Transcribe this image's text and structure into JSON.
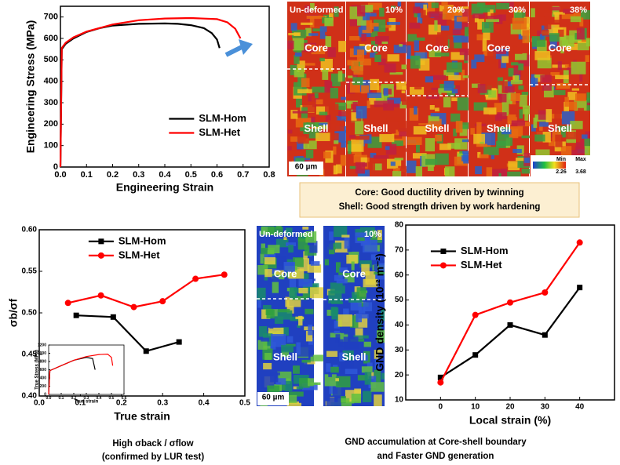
{
  "chart_data": [
    {
      "type": "line",
      "xlabel": "Engineering Strain",
      "ylabel": "Engineering Stress (MPa)",
      "xlim": [
        0,
        0.8
      ],
      "ylim": [
        0,
        750
      ],
      "xticks": [
        {
          "value": 0,
          "label": "0.0"
        },
        0.1,
        0.2,
        0.3,
        0.4,
        0.5,
        0.6,
        0.7,
        0.8
      ],
      "yticks": [
        0,
        100,
        200,
        300,
        400,
        500,
        600,
        700
      ],
      "legend": "lower right",
      "series": [
        {
          "name": "SLM-Hom",
          "color": "#000000",
          "x": [
            0,
            0.005,
            0.02,
            0.05,
            0.1,
            0.15,
            0.2,
            0.3,
            0.4,
            0.45,
            0.5,
            0.55,
            0.58,
            0.6,
            0.61
          ],
          "values": [
            0,
            550,
            575,
            600,
            630,
            648,
            660,
            668,
            670,
            668,
            662,
            648,
            625,
            595,
            555
          ]
        },
        {
          "name": "SLM-Het",
          "color": "#ff0000",
          "x": [
            0,
            0.005,
            0.02,
            0.05,
            0.1,
            0.2,
            0.3,
            0.4,
            0.5,
            0.6,
            0.64,
            0.67,
            0.69
          ],
          "values": [
            0,
            555,
            580,
            605,
            632,
            665,
            685,
            693,
            695,
            690,
            675,
            645,
            600
          ]
        }
      ]
    },
    {
      "type": "line",
      "xlabel": "True strain",
      "ylabel": "σb/σf",
      "xlim": [
        0,
        0.5
      ],
      "ylim": [
        0.4,
        0.6
      ],
      "xticks": [
        {
          "value": 0,
          "label": "0.0"
        },
        0.1,
        0.2,
        0.3,
        0.4,
        0.5
      ],
      "yticks": [
        {
          "value": 0.4,
          "label": "0.40"
        },
        0.45,
        {
          "value": 0.5,
          "label": "0.50"
        },
        0.55,
        {
          "value": 0.6,
          "label": "0.60"
        }
      ],
      "legend": "upper center",
      "series": [
        {
          "name": "SLM-Hom",
          "color": "#000000",
          "marker": "square",
          "x": [
            0.09,
            0.18,
            0.26,
            0.34
          ],
          "values": [
            0.497,
            0.495,
            0.454,
            0.465
          ]
        },
        {
          "name": "SLM-Het",
          "color": "#ff0000",
          "marker": "circle",
          "x": [
            0.07,
            0.15,
            0.23,
            0.3,
            0.38,
            0.45
          ],
          "values": [
            0.512,
            0.521,
            0.507,
            0.514,
            0.541,
            0.546
          ]
        }
      ]
    },
    {
      "type": "line",
      "xlabel": "Local strain (%)",
      "ylabel": "GND density (10¹² m⁻²)",
      "xlim": [
        -10,
        50
      ],
      "ylim": [
        10,
        80
      ],
      "xticks": [
        0,
        10,
        20,
        30,
        40
      ],
      "yticks": [
        10,
        20,
        30,
        40,
        50,
        60,
        70,
        80
      ],
      "legend": "upper left",
      "series": [
        {
          "name": "SLM-Hom",
          "color": "#000000",
          "marker": "square",
          "x": [
            0,
            10,
            20,
            30,
            40
          ],
          "values": [
            19,
            28,
            40,
            36,
            55
          ]
        },
        {
          "name": "SLM-Het",
          "color": "#ff0000",
          "marker": "circle",
          "x": [
            0,
            10,
            20,
            30,
            40
          ],
          "values": [
            17,
            44,
            49,
            53,
            73
          ]
        }
      ]
    },
    {
      "type": "line",
      "xlabel": "True strain",
      "ylabel": "True Stress (MPa)",
      "xlim": [
        0,
        0.6
      ],
      "ylim": [
        0,
        1200
      ],
      "xticks": [
        {
          "value": 0,
          "label": "0.0"
        },
        0.1,
        0.2,
        0.3,
        0.4,
        0.5,
        0.6
      ],
      "yticks": [
        0,
        200,
        400,
        600,
        800,
        1000,
        1200
      ],
      "series": [
        {
          "color": "#000000",
          "x": [
            0,
            0.01,
            0.1,
            0.2,
            0.3,
            0.35,
            0.37
          ],
          "values": [
            0,
            580,
            700,
            830,
            900,
            870,
            600
          ]
        },
        {
          "color": "#ff0000",
          "x": [
            0,
            0.01,
            0.1,
            0.2,
            0.3,
            0.4,
            0.47,
            0.5,
            0.51
          ],
          "values": [
            0,
            580,
            700,
            830,
            920,
            970,
            980,
            900,
            700
          ]
        }
      ]
    }
  ],
  "micrograph_top": {
    "stages": [
      "Un-deformed",
      "10%",
      "20%",
      "30%",
      "38%"
    ],
    "core": "Core",
    "shell": "Shell",
    "scale_bar": "60 µm",
    "colorbar": {
      "min": "Min",
      "max": "Max",
      "min_value": "2.26",
      "max_value": "3.68"
    }
  },
  "caption_top": [
    "Core: Good ductility  driven by twinning",
    "Shell: Good strength driven by work hardening"
  ],
  "micrograph_bottom": {
    "stages": [
      "Un-deformed",
      "10%"
    ],
    "core": "Core",
    "shell": "Shell",
    "scale_bar": "60 µm"
  },
  "caption_bottom_left": [
    "High σback / σflow",
    "(confirmed by LUR test)"
  ],
  "caption_bottom_right": [
    "GND accumulation at Core-shell boundary",
    "and  Faster GND generation"
  ]
}
